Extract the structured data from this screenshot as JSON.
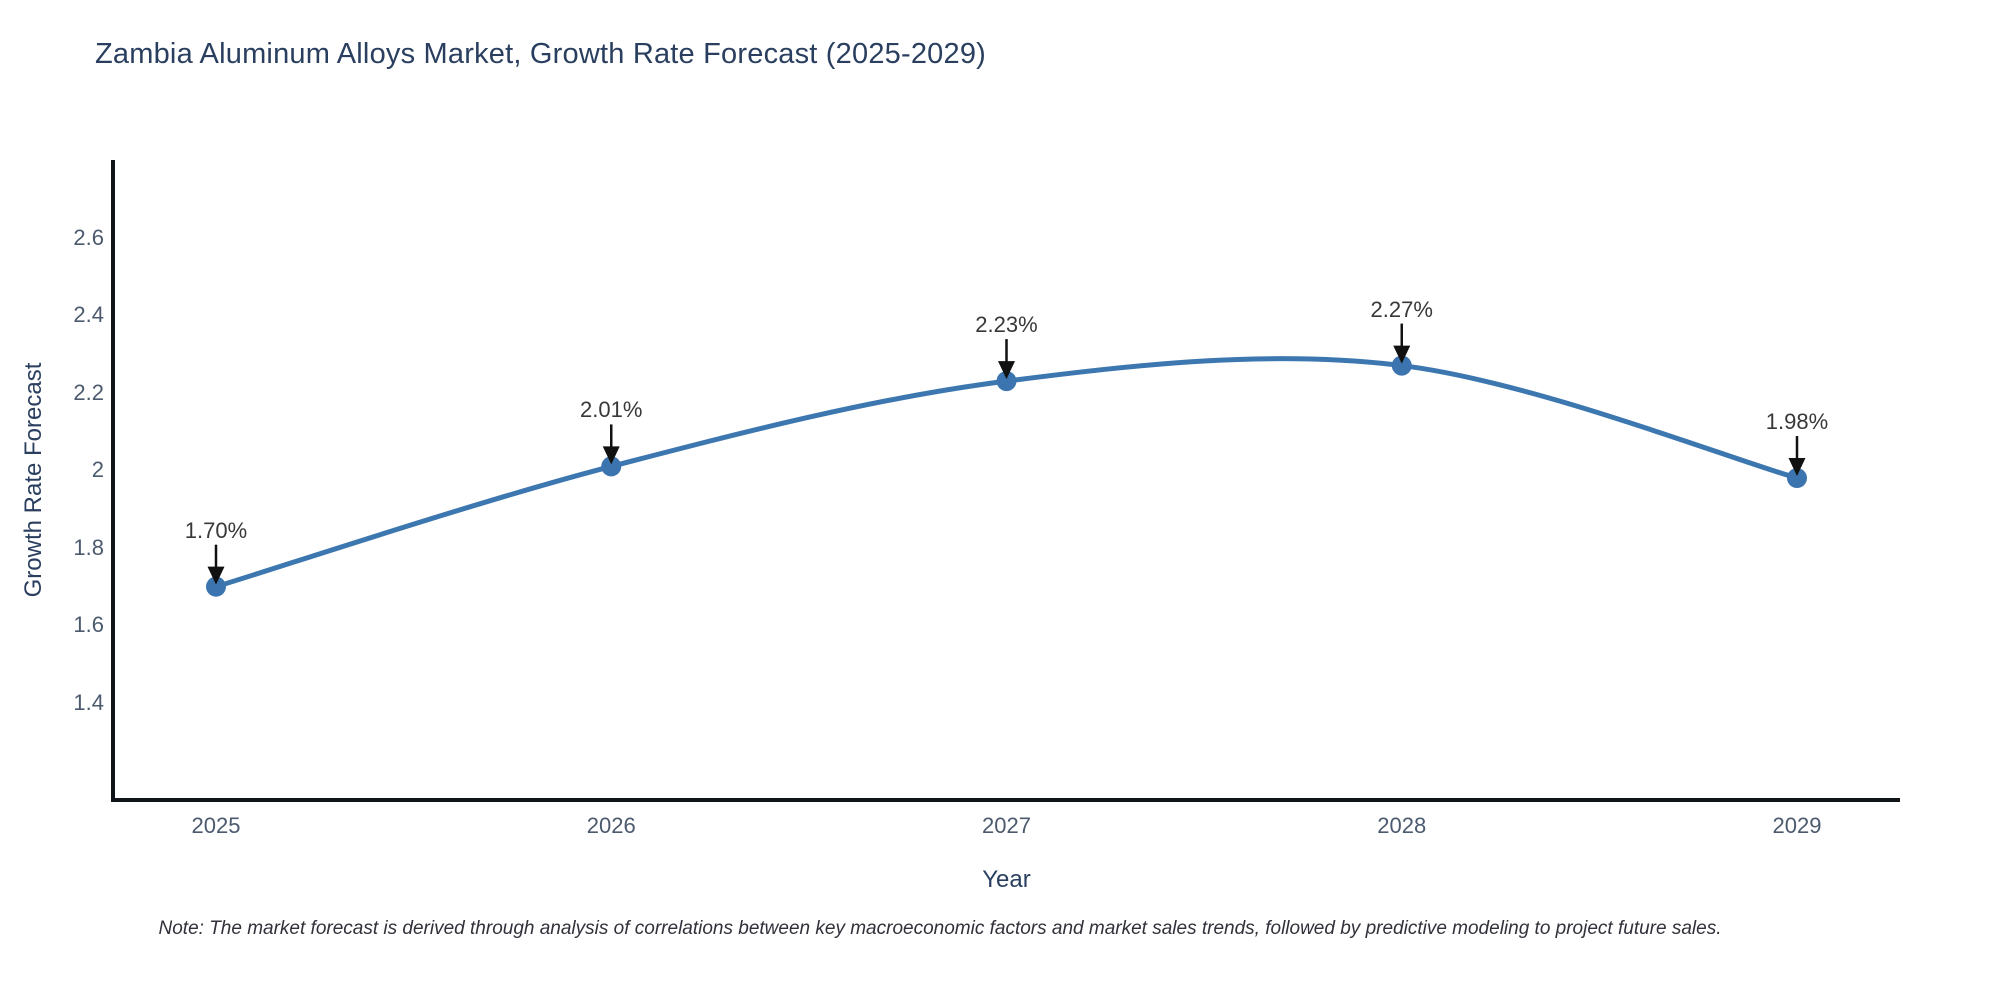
{
  "title": "Zambia Aluminum Alloys Market, Growth Rate Forecast (2025-2029)",
  "note": "Note: The market forecast is derived through analysis of correlations between key macroeconomic factors and market sales trends, followed by predictive modeling to project future sales.",
  "chart_data": {
    "type": "line",
    "line_shape": "spline",
    "title": "Zambia Aluminum Alloys Market, Growth Rate Forecast (2025-2029)",
    "xlabel": "Year",
    "ylabel": "Growth Rate Forecast",
    "categories": [
      "2025",
      "2026",
      "2027",
      "2028",
      "2029"
    ],
    "values": [
      1.7,
      2.01,
      2.23,
      2.27,
      1.98
    ],
    "point_labels": [
      "1.70%",
      "2.01%",
      "2.23%",
      "2.27%",
      "1.98%"
    ],
    "ytick_labels": [
      "1.4",
      "1.6",
      "1.8",
      "2",
      "2.2",
      "2.4",
      "2.6"
    ],
    "ytick_values": [
      1.4,
      1.6,
      1.8,
      2.0,
      2.2,
      2.4,
      2.6
    ],
    "ylim": [
      1.15,
      2.8
    ],
    "grid": false,
    "legend": "none",
    "annotations_have_arrows": true,
    "colors": {
      "line": "#3d77b0",
      "marker": "#3b74ae",
      "axis": "#101418",
      "arrow": "#111111",
      "title_text": "#2a3f5f",
      "tick_text": "#4c5a6e",
      "annotation_text": "#383838",
      "note_text": "#30313a"
    }
  }
}
